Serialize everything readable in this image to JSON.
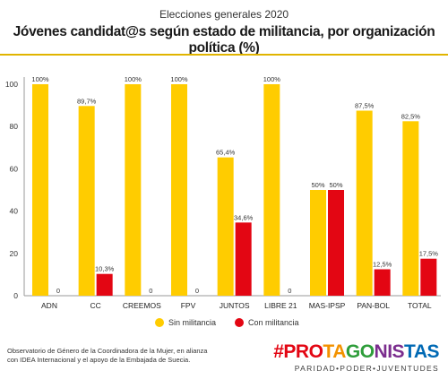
{
  "header": {
    "subtitle": "Elecciones generales 2020",
    "title": "Jóvenes candidat@s según estado de militancia, por organización política (%)"
  },
  "chart_data": {
    "type": "bar",
    "categories": [
      "ADN",
      "CC",
      "CREEMOS",
      "FPV",
      "JUNTOS",
      "LIBRE 21",
      "MAS-IPSP",
      "PAN-BOL",
      "TOTAL"
    ],
    "series": [
      {
        "name": "Sin militancia",
        "color": "#ffcc00",
        "values": [
          100,
          89.7,
          100,
          100,
          65.4,
          100,
          50,
          87.5,
          82.5
        ],
        "labels": [
          "100%",
          "89,7%",
          "100%",
          "100%",
          "65,4%",
          "100%",
          "50%",
          "87,5%",
          "82,5%"
        ]
      },
      {
        "name": "Con militancia",
        "color": "#e30613",
        "values": [
          0,
          10.3,
          0,
          0,
          34.6,
          0,
          50,
          12.5,
          17.5
        ],
        "labels": [
          "0",
          "10,3%",
          "0",
          "0",
          "34,6%",
          "0",
          "50%",
          "12,5%",
          "17,5%"
        ]
      }
    ],
    "yticks": [
      "0",
      "20",
      "40",
      "60",
      "80",
      "100"
    ],
    "ylim": [
      0,
      100
    ],
    "grid": false,
    "legend": "bottom-center"
  },
  "footer": {
    "note": "Observatorio de Género de la Coordinadora de la Mujer, en alianza con IDEA Internacional y el apoyo de la Embajada de Suecia.",
    "brand_segments": [
      {
        "text": "#",
        "color": "#e30613"
      },
      {
        "text": "PRO",
        "color": "#e30613"
      },
      {
        "text": "TA",
        "color": "#f39200"
      },
      {
        "text": "GO",
        "color": "#2e9d3a"
      },
      {
        "text": "NIS",
        "color": "#7b2d8e"
      },
      {
        "text": "TAS",
        "color": "#0069b4"
      }
    ],
    "tagline": "PARIDAD•PODER•JUVENTUDES"
  }
}
